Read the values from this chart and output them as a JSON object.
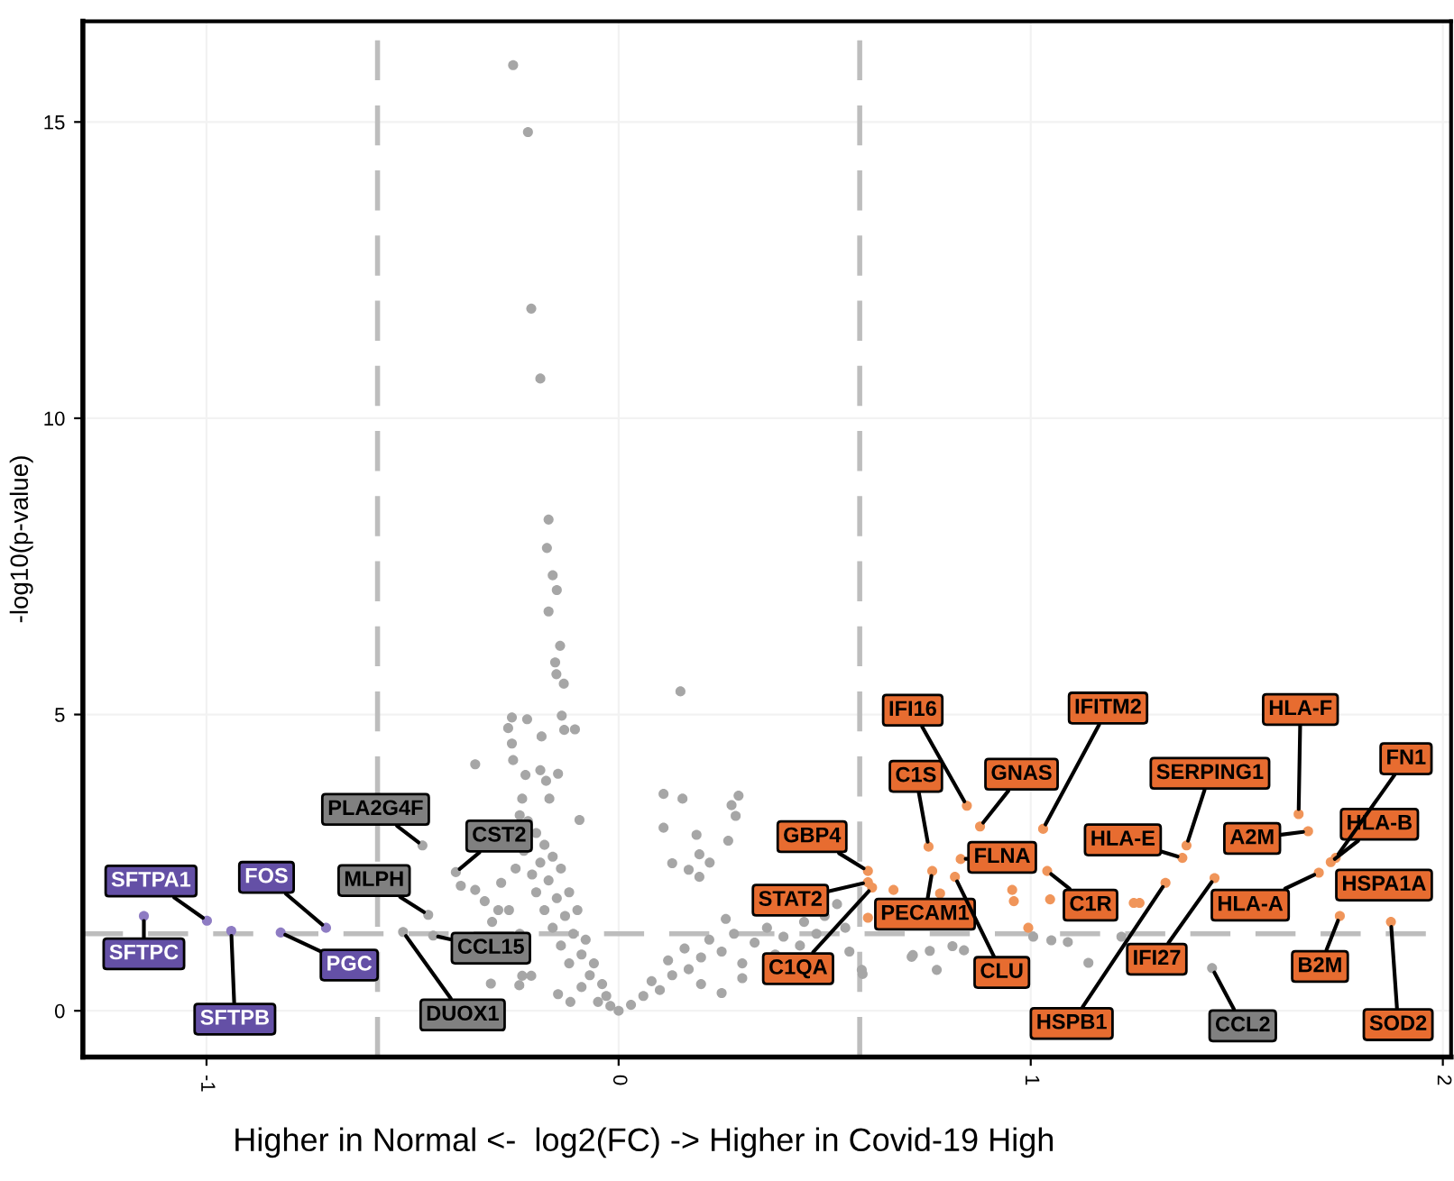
{
  "chart_data": {
    "type": "scatter",
    "xlabel": "Higher in Normal <-  log2(FC) -> Higher in Covid-19 High",
    "ylabel": "-log10(p-value)",
    "xlim": [
      -1.3,
      2.02
    ],
    "ylim": [
      -0.78,
      16.7
    ],
    "xticks": [
      -1,
      0,
      1,
      2
    ],
    "yticks": [
      0,
      5,
      10,
      15
    ],
    "grid": true,
    "marker": "circle",
    "legend": false,
    "ref_lines": [
      {
        "axis": "x",
        "value": -0.585,
        "color": "#bdbdbd",
        "line_style": "dashed"
      },
      {
        "axis": "x",
        "value": 0.585,
        "color": "#bdbdbd",
        "line_style": "dashed"
      },
      {
        "axis": "y",
        "value": 1.3,
        "color": "#bdbdbd",
        "line_style": "dashed"
      }
    ],
    "series": [
      {
        "color": "#a6a6a6",
        "x": [
          -0.476,
          -0.395,
          -0.462,
          -0.45,
          -0.523,
          1.44,
          -0.256,
          -0.22,
          -0.212,
          -0.19,
          -0.17,
          -0.174,
          -0.16,
          -0.15,
          -0.17,
          -0.142,
          -0.154,
          -0.151,
          -0.133,
          0.15,
          -0.259,
          -0.222,
          -0.138,
          -0.268,
          -0.187,
          -0.132,
          -0.106,
          -0.259,
          -0.348,
          -0.256,
          -0.226,
          -0.19,
          -0.176,
          -0.147,
          -0.234,
          -0.168,
          -0.095,
          0.109,
          0.155,
          0.274,
          0.291,
          0.284,
          0.109,
          0.189,
          0.266,
          0.13,
          0.196,
          0.221,
          0.17,
          0.196,
          -0.383,
          -0.348,
          -0.325,
          -0.285,
          -0.307,
          -0.266,
          -0.31,
          -0.241,
          -0.212,
          -0.147,
          -0.117,
          0.0,
          -0.22,
          -0.2,
          -0.18,
          -0.23,
          -0.19,
          -0.16,
          -0.21,
          -0.17,
          -0.14,
          -0.2,
          -0.15,
          -0.12,
          -0.18,
          -0.13,
          -0.1,
          -0.16,
          -0.11,
          -0.08,
          -0.14,
          -0.09,
          -0.06,
          -0.12,
          -0.07,
          -0.04,
          -0.09,
          -0.03,
          -0.05,
          -0.02,
          0.03,
          0.06,
          0.1,
          0.08,
          0.13,
          0.17,
          0.12,
          0.2,
          0.25,
          0.22,
          0.28,
          0.33,
          0.3,
          0.36,
          0.4,
          0.38,
          0.45,
          0.44,
          0.5,
          0.48,
          0.53,
          0.55,
          0.16,
          0.26,
          0.2,
          0.3,
          0.25,
          0.56,
          0.714,
          0.755,
          0.772,
          0.81,
          0.59,
          1.006,
          1.05,
          1.09,
          1.14,
          1.22,
          0.711,
          0.838,
          0.592,
          -0.292,
          -0.234,
          -0.24,
          -0.25,
          -0.24
        ],
        "values": [
          2.79,
          2.34,
          1.62,
          1.27,
          1.33,
          0.72,
          15.96,
          14.83,
          11.85,
          10.67,
          8.29,
          7.81,
          7.35,
          7.1,
          6.74,
          6.16,
          5.88,
          5.68,
          5.52,
          5.39,
          4.95,
          4.92,
          4.98,
          4.77,
          4.63,
          4.74,
          4.75,
          4.51,
          4.16,
          4.23,
          3.98,
          4.06,
          3.88,
          4.0,
          3.58,
          3.58,
          3.22,
          3.66,
          3.58,
          3.47,
          3.63,
          3.29,
          3.09,
          2.97,
          2.87,
          2.49,
          2.64,
          2.5,
          2.38,
          2.26,
          2.11,
          2.04,
          1.85,
          2.16,
          1.5,
          1.7,
          0.46,
          0.43,
          0.59,
          0.28,
          0.15,
          0.0,
          3.2,
          3.0,
          2.8,
          2.7,
          2.5,
          2.6,
          2.3,
          2.2,
          2.4,
          2.0,
          1.9,
          2.0,
          1.7,
          1.6,
          1.7,
          1.4,
          1.3,
          1.2,
          1.1,
          0.95,
          0.8,
          0.8,
          0.6,
          0.45,
          0.4,
          0.25,
          0.15,
          0.08,
          0.1,
          0.25,
          0.35,
          0.5,
          0.6,
          0.7,
          0.85,
          0.9,
          1.0,
          1.2,
          1.3,
          1.15,
          0.8,
          1.4,
          1.25,
          0.95,
          1.5,
          1.1,
          1.6,
          1.3,
          1.8,
          1.4,
          1.05,
          1.55,
          0.45,
          0.55,
          0.3,
          1.0,
          0.94,
          1.01,
          0.69,
          1.09,
          0.69,
          1.25,
          1.19,
          1.16,
          0.81,
          1.25,
          0.91,
          1.02,
          0.62,
          1.7,
          0.59,
          1.3,
          2.4,
          3.3
        ]
      },
      {
        "color": "#8e7cc3",
        "x": [
          -0.999,
          -1.152,
          -0.94,
          -0.82,
          -0.71
        ],
        "values": [
          1.52,
          1.6,
          1.35,
          1.32,
          1.4
        ]
      },
      {
        "color": "#f0955a",
        "x": [
          0.845,
          0.752,
          0.877,
          0.83,
          1.03,
          0.605,
          0.605,
          0.615,
          0.761,
          0.816,
          1.04,
          1.327,
          1.368,
          1.378,
          1.446,
          1.65,
          1.673,
          1.699,
          1.728,
          1.74,
          1.75,
          1.874,
          0.667,
          0.605,
          0.78,
          0.955,
          0.959,
          0.994,
          1.047,
          1.25,
          1.264
        ],
        "values": [
          3.46,
          2.77,
          3.11,
          2.56,
          3.07,
          2.36,
          2.17,
          2.08,
          2.36,
          2.26,
          2.36,
          2.16,
          2.58,
          2.79,
          2.24,
          3.32,
          3.03,
          2.33,
          2.51,
          2.58,
          1.6,
          1.5,
          2.04,
          1.57,
          1.98,
          2.04,
          1.85,
          1.4,
          1.88,
          1.82,
          1.82
        ]
      }
    ],
    "annotations": [
      {
        "text": "SFTPA1",
        "x": -0.999,
        "y": 1.52
      },
      {
        "text": "SFTPC",
        "x": -1.152,
        "y": 1.6
      },
      {
        "text": "SFTPB",
        "x": -0.94,
        "y": 1.35
      },
      {
        "text": "PGC",
        "x": -0.82,
        "y": 1.32
      },
      {
        "text": "FOS",
        "x": -0.71,
        "y": 1.4
      },
      {
        "text": "PLA2G4F",
        "x": -0.476,
        "y": 2.79
      },
      {
        "text": "CST2",
        "x": -0.395,
        "y": 2.34
      },
      {
        "text": "MLPH",
        "x": -0.462,
        "y": 1.62
      },
      {
        "text": "CCL15",
        "x": -0.45,
        "y": 1.27
      },
      {
        "text": "DUOX1",
        "x": -0.523,
        "y": 1.33
      },
      {
        "text": "CCL2",
        "x": 1.44,
        "y": 0.72
      },
      {
        "text": "IFI16",
        "x": 0.845,
        "y": 3.46
      },
      {
        "text": "C1S",
        "x": 0.752,
        "y": 2.77
      },
      {
        "text": "GNAS",
        "x": 0.877,
        "y": 3.11
      },
      {
        "text": "FLNA",
        "x": 0.83,
        "y": 2.56
      },
      {
        "text": "IFITM2",
        "x": 1.03,
        "y": 3.07
      },
      {
        "text": "GBP4",
        "x": 0.605,
        "y": 2.36
      },
      {
        "text": "STAT2",
        "x": 0.605,
        "y": 2.17
      },
      {
        "text": "C1QA",
        "x": 0.615,
        "y": 2.08
      },
      {
        "text": "PECAM1",
        "x": 0.761,
        "y": 2.36
      },
      {
        "text": "CLU",
        "x": 0.816,
        "y": 2.26
      },
      {
        "text": "C1R",
        "x": 1.04,
        "y": 2.36
      },
      {
        "text": "HSPB1",
        "x": 1.327,
        "y": 2.16
      },
      {
        "text": "HLA-E",
        "x": 1.368,
        "y": 2.58
      },
      {
        "text": "SERPING1",
        "x": 1.378,
        "y": 2.79
      },
      {
        "text": "IFI27",
        "x": 1.446,
        "y": 2.24
      },
      {
        "text": "HLA-F",
        "x": 1.65,
        "y": 3.32
      },
      {
        "text": "A2M",
        "x": 1.673,
        "y": 3.03
      },
      {
        "text": "HLA-A",
        "x": 1.699,
        "y": 2.33
      },
      {
        "text": "HLA-B",
        "x": 1.728,
        "y": 2.51
      },
      {
        "text": "FN1",
        "x": 1.74,
        "y": 2.58
      },
      {
        "text": "B2M",
        "x": 1.75,
        "y": 1.6
      },
      {
        "text": "SOD2",
        "x": 1.874,
        "y": 1.5
      },
      "HSPA1A"
    ]
  }
}
